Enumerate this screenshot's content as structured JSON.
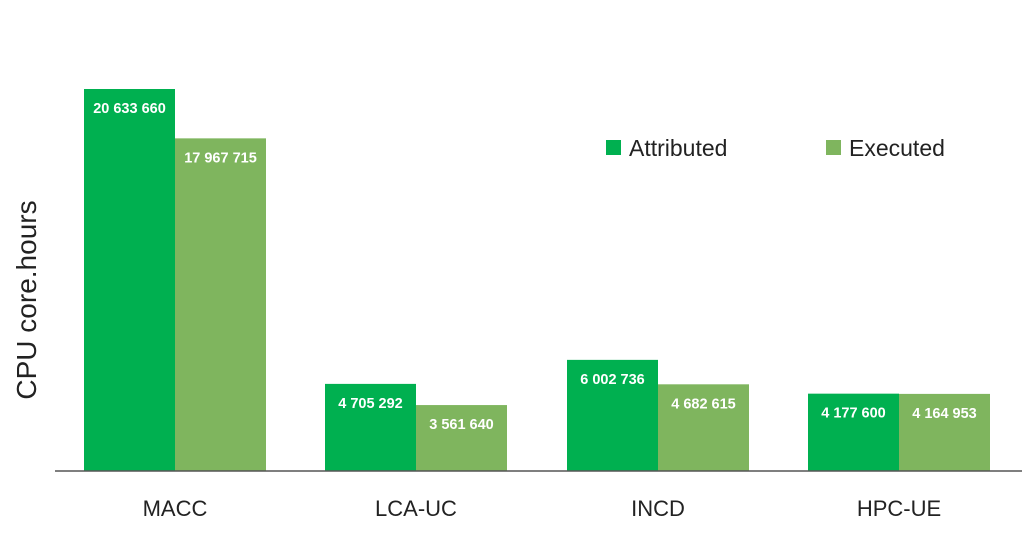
{
  "chart_data": {
    "type": "bar",
    "title": "",
    "xlabel": "",
    "ylabel": "CPU core.hours",
    "categories": [
      "MACC",
      "LCA-UC",
      "INCD",
      "HPC-UE"
    ],
    "series": [
      {
        "name": "Attributed",
        "color": "#00b050",
        "values": [
          20633660,
          4705292,
          6002736,
          4177600
        ],
        "labels": [
          "20 633 660",
          "4 705 292",
          "6 002 736",
          "4 177 600"
        ]
      },
      {
        "name": "Executed",
        "color": "#7fb55e",
        "values": [
          17967715,
          3561640,
          4682615,
          4164953
        ],
        "labels": [
          "17 967 715",
          "3 561 640",
          "4 682 615",
          "4 164 953"
        ]
      }
    ],
    "ylim": [
      0,
      20633660
    ],
    "grid": false,
    "legend": "top-right",
    "data_labels": "inside-top"
  }
}
